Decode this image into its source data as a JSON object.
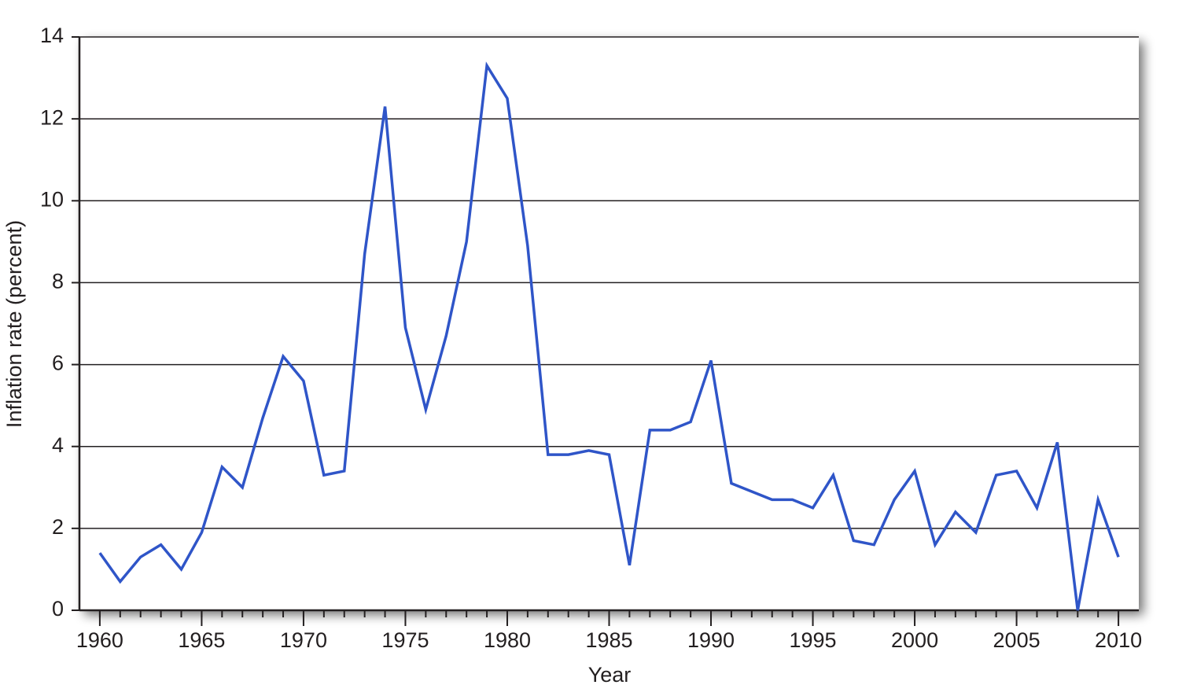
{
  "chart_data": {
    "type": "line",
    "x_label": "Year",
    "y_label": "Inflation rate (percent)",
    "x": [
      1960,
      1961,
      1962,
      1963,
      1964,
      1965,
      1966,
      1967,
      1968,
      1969,
      1970,
      1971,
      1972,
      1973,
      1974,
      1975,
      1976,
      1977,
      1978,
      1979,
      1980,
      1981,
      1982,
      1983,
      1984,
      1985,
      1986,
      1987,
      1988,
      1989,
      1990,
      1991,
      1992,
      1993,
      1994,
      1995,
      1996,
      1997,
      1998,
      1999,
      2000,
      2001,
      2002,
      2003,
      2004,
      2005,
      2006,
      2007,
      2008,
      2009,
      2010
    ],
    "series": [
      {
        "color": "#2f55c8",
        "values": [
          1.4,
          0.7,
          1.3,
          1.6,
          1.0,
          1.9,
          3.5,
          3.0,
          4.7,
          6.2,
          5.6,
          3.3,
          3.4,
          8.7,
          12.3,
          6.9,
          4.9,
          6.7,
          9.0,
          13.3,
          12.5,
          8.9,
          3.8,
          3.8,
          3.9,
          3.8,
          1.1,
          4.4,
          4.4,
          4.6,
          6.1,
          3.1,
          2.9,
          2.7,
          2.7,
          2.5,
          3.3,
          1.7,
          1.6,
          2.7,
          3.4,
          1.6,
          2.4,
          1.9,
          3.3,
          3.4,
          2.5,
          4.1,
          0,
          2.7,
          1.3
        ]
      }
    ],
    "xlim": [
      1959,
      2011
    ],
    "xticks": [
      1960,
      1965,
      1970,
      1975,
      1980,
      1985,
      1990,
      1995,
      2000,
      2005,
      2010
    ],
    "ylim": [
      0,
      14
    ],
    "yticks": [
      0,
      2,
      4,
      6,
      8,
      10,
      12,
      14
    ],
    "grid": true
  }
}
